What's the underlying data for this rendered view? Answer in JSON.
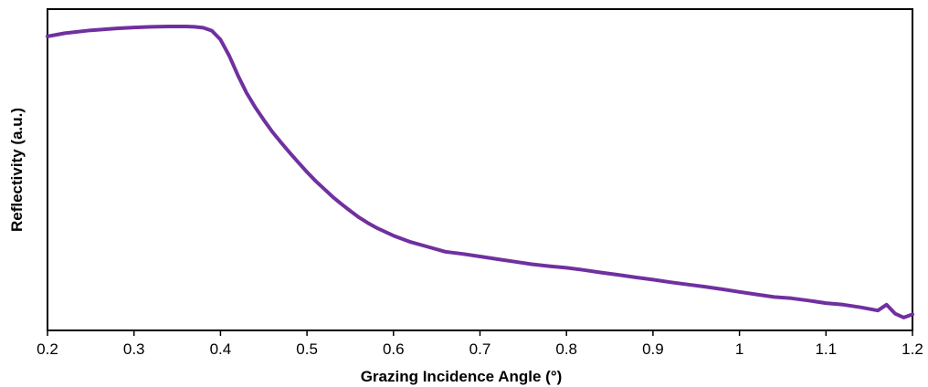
{
  "chart_data": {
    "type": "line",
    "title": "",
    "xlabel": "Grazing Incidence Angle (°)",
    "ylabel": "Reflectivity (a.u.)",
    "xlim": [
      0.2,
      1.2
    ],
    "ylim": [
      0,
      1
    ],
    "x_ticks": [
      0.2,
      0.3,
      0.4,
      0.5,
      0.6,
      0.7,
      0.8,
      0.9,
      1.0,
      1.1,
      1.2
    ],
    "x_tick_labels": [
      "0.2",
      "0.3",
      "0.4",
      "0.5",
      "0.6",
      "0.7",
      "0.8",
      "0.9",
      "1",
      "1.1",
      "1.2"
    ],
    "y_tick_labels_shown": false,
    "grid": false,
    "legend": "none",
    "series": [
      {
        "color": "#7030a0",
        "x": [
          0.2,
          0.22,
          0.25,
          0.28,
          0.3,
          0.32,
          0.34,
          0.36,
          0.37,
          0.38,
          0.39,
          0.4,
          0.41,
          0.42,
          0.43,
          0.44,
          0.45,
          0.46,
          0.47,
          0.48,
          0.49,
          0.5,
          0.51,
          0.52,
          0.53,
          0.54,
          0.55,
          0.56,
          0.57,
          0.58,
          0.6,
          0.62,
          0.64,
          0.66,
          0.68,
          0.7,
          0.72,
          0.74,
          0.76,
          0.78,
          0.8,
          0.82,
          0.84,
          0.86,
          0.88,
          0.9,
          0.92,
          0.94,
          0.96,
          0.98,
          1.0,
          1.02,
          1.04,
          1.06,
          1.08,
          1.1,
          1.12,
          1.14,
          1.16,
          1.17,
          1.18,
          1.19,
          1.2
        ],
        "y": [
          0.915,
          0.925,
          0.934,
          0.94,
          0.943,
          0.945,
          0.946,
          0.946,
          0.945,
          0.942,
          0.933,
          0.905,
          0.855,
          0.795,
          0.74,
          0.695,
          0.655,
          0.618,
          0.585,
          0.553,
          0.523,
          0.493,
          0.465,
          0.44,
          0.415,
          0.393,
          0.372,
          0.352,
          0.335,
          0.32,
          0.295,
          0.275,
          0.26,
          0.245,
          0.238,
          0.23,
          0.222,
          0.214,
          0.206,
          0.2,
          0.195,
          0.188,
          0.18,
          0.173,
          0.165,
          0.158,
          0.15,
          0.143,
          0.136,
          0.128,
          0.12,
          0.112,
          0.104,
          0.1,
          0.093,
          0.085,
          0.08,
          0.072,
          0.062,
          0.08,
          0.052,
          0.04,
          0.05
        ]
      }
    ]
  }
}
